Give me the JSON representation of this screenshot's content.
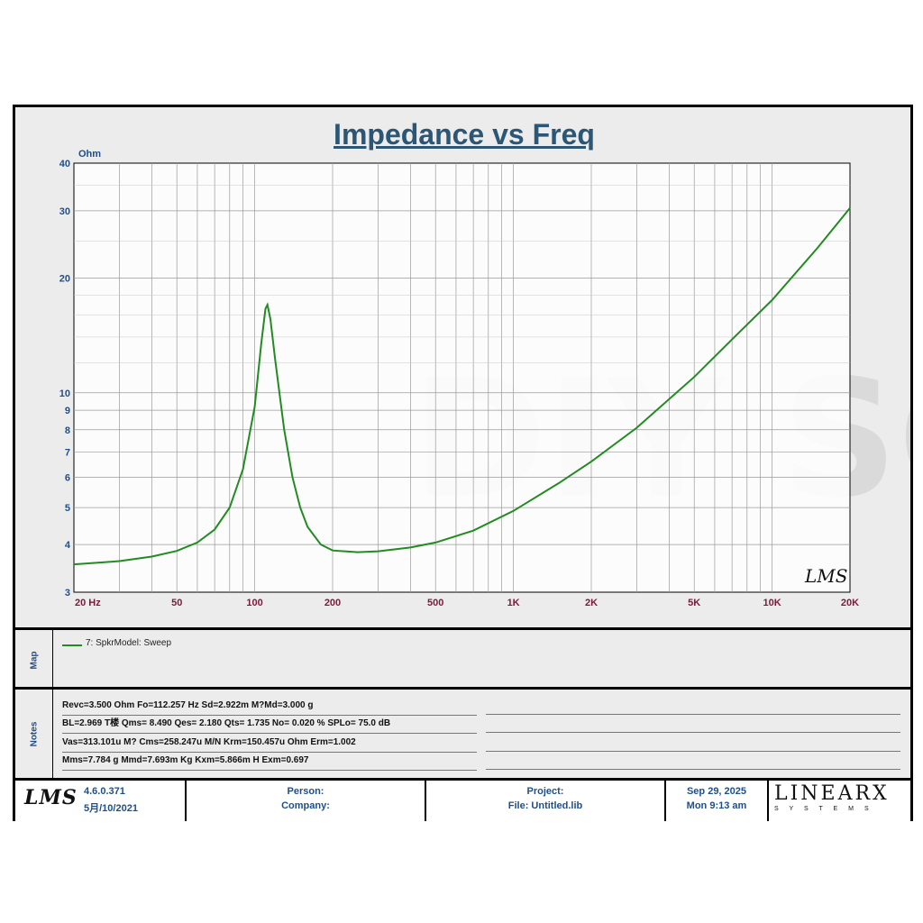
{
  "chart_data": {
    "type": "line",
    "title": "Impedance vs Freq",
    "ylabel": "Ohm",
    "x_scale": "log",
    "y_scale": "log",
    "xlim": [
      20,
      20000
    ],
    "ylim": [
      3,
      40
    ],
    "x_tick_labels": [
      {
        "v": 20,
        "label": "20  Hz"
      },
      {
        "v": 50,
        "label": "50"
      },
      {
        "v": 100,
        "label": "100"
      },
      {
        "v": 200,
        "label": "200"
      },
      {
        "v": 500,
        "label": "500"
      },
      {
        "v": 1000,
        "label": "1K"
      },
      {
        "v": 2000,
        "label": "2K"
      },
      {
        "v": 5000,
        "label": "5K"
      },
      {
        "v": 10000,
        "label": "10K"
      },
      {
        "v": 20000,
        "label": "20K"
      }
    ],
    "y_tick_labels": [
      {
        "v": 3,
        "label": "3"
      },
      {
        "v": 4,
        "label": "4"
      },
      {
        "v": 5,
        "label": "5"
      },
      {
        "v": 6,
        "label": "6"
      },
      {
        "v": 7,
        "label": "7"
      },
      {
        "v": 8,
        "label": "8"
      },
      {
        "v": 9,
        "label": "9"
      },
      {
        "v": 10,
        "label": "10"
      },
      {
        "v": 20,
        "label": "20"
      },
      {
        "v": 30,
        "label": "30"
      },
      {
        "v": 40,
        "label": "40"
      }
    ],
    "grid": true,
    "series": [
      {
        "name": "7: SpkrModel: Sweep",
        "color": "#228b22",
        "points": [
          [
            20,
            3.55
          ],
          [
            30,
            3.62
          ],
          [
            40,
            3.72
          ],
          [
            50,
            3.85
          ],
          [
            60,
            4.05
          ],
          [
            70,
            4.38
          ],
          [
            80,
            5.0
          ],
          [
            90,
            6.3
          ],
          [
            100,
            9.2
          ],
          [
            106,
            13.5
          ],
          [
            110,
            16.6
          ],
          [
            112,
            17.0
          ],
          [
            115,
            15.6
          ],
          [
            120,
            12.2
          ],
          [
            130,
            8.0
          ],
          [
            140,
            6.0
          ],
          [
            150,
            5.0
          ],
          [
            160,
            4.45
          ],
          [
            180,
            4.0
          ],
          [
            200,
            3.86
          ],
          [
            250,
            3.82
          ],
          [
            300,
            3.84
          ],
          [
            400,
            3.93
          ],
          [
            500,
            4.05
          ],
          [
            700,
            4.35
          ],
          [
            1000,
            4.9
          ],
          [
            1500,
            5.8
          ],
          [
            2000,
            6.6
          ],
          [
            3000,
            8.1
          ],
          [
            5000,
            11.0
          ],
          [
            7000,
            13.8
          ],
          [
            10000,
            17.5
          ],
          [
            15000,
            24.0
          ],
          [
            20000,
            30.5
          ]
        ]
      }
    ]
  },
  "map_label": "Map",
  "notes_label": "Notes",
  "legend": {
    "label": "7: SpkrModel: Sweep",
    "color": "#228b22"
  },
  "notes": [
    "Revc=3.500 Ohm  Fo=112.257 Hz  Sd=2.922m M?Md=3.000 g",
    "BL=2.969 T楼  Qms= 8.490  Qes= 2.180  Qts= 1.735  No= 0.020 %  SPLo= 75.0 dB",
    "Vas=313.101u M? Cms=258.247u M/N  Krm=150.457u Ohm  Erm=1.002",
    "Mms=7.784 g  Mmd=7.693m Kg  Kxm=5.866m H  Exm=0.697"
  ],
  "footer": {
    "logo": "LMS",
    "version": "4.6.0.371",
    "build_date": "5月/10/2021",
    "person_label": "Person:",
    "company_label": "Company:",
    "project_label": "Project:",
    "file_label": "File: Untitled.lib",
    "date": "Sep 29, 2025",
    "time": "Mon  9:13 am",
    "brand": "LINEARX",
    "brand_sub": "S Y S T E M S"
  },
  "plot_logo": "LMS",
  "watermark": "DIY SOUND"
}
